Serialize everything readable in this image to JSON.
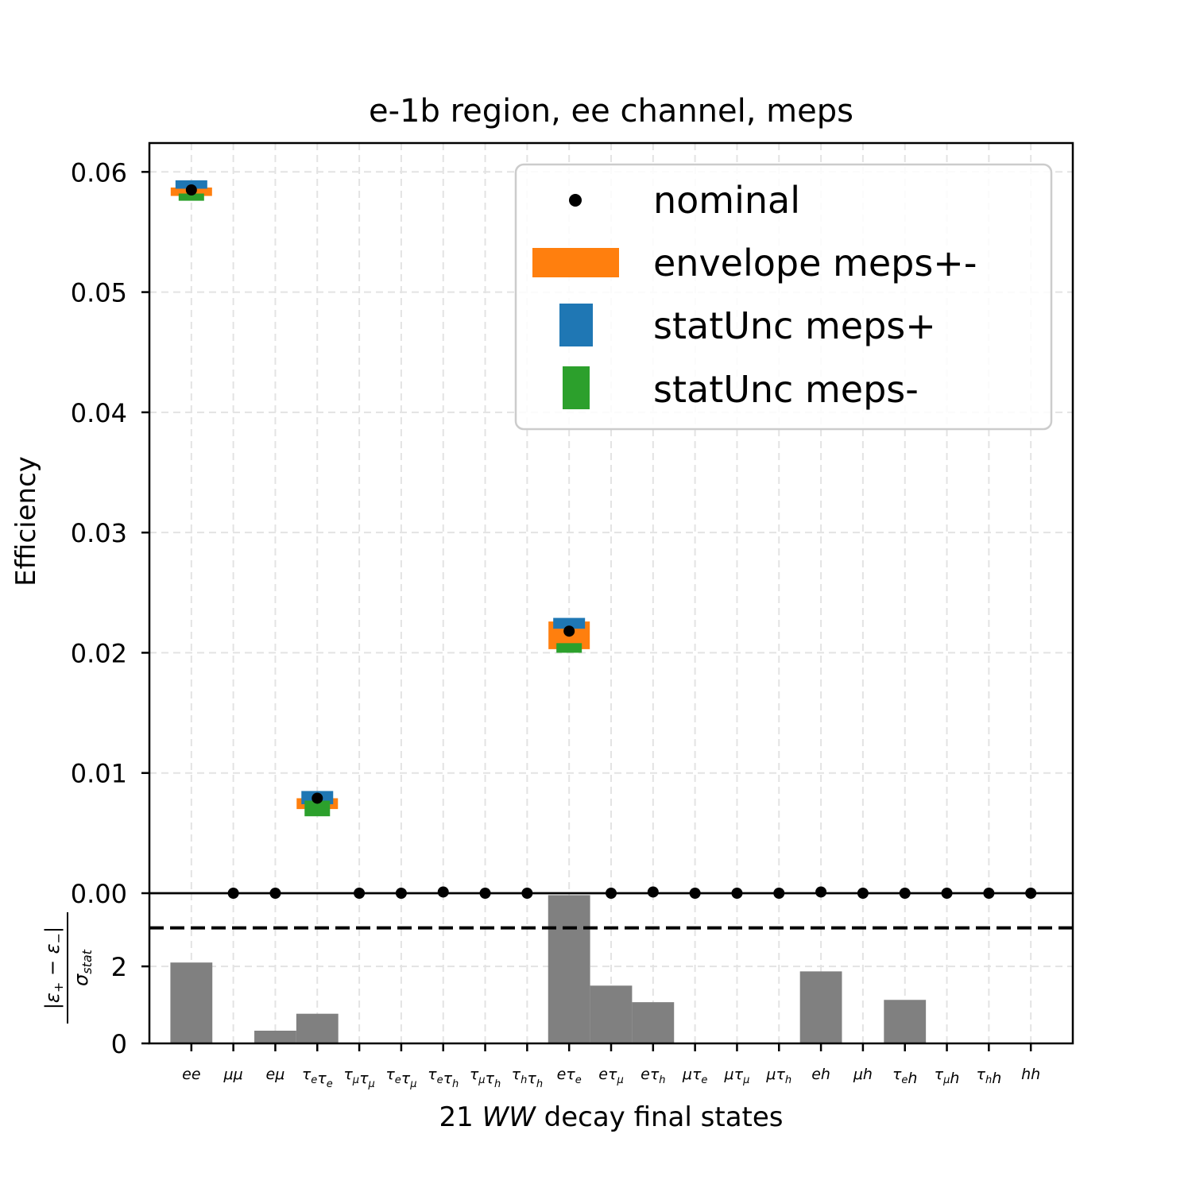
{
  "chart_data": {
    "type": "bar",
    "title": "e-1b region, ee channel, meps",
    "xlabel": "21 WW decay final states",
    "ylabel": "Efficiency",
    "ratio_ylabel": "|ε₊ − ε₋| / σ_stat",
    "ylim": [
      0,
      0.0624
    ],
    "ratio_ylim": [
      0,
      3.9
    ],
    "yticks": [
      "0.00",
      "0.01",
      "0.02",
      "0.03",
      "0.04",
      "0.05",
      "0.06"
    ],
    "ratio_yticks": [
      "0",
      "2"
    ],
    "ratio_threshold": 3,
    "grid": true,
    "legend_position": "top-right",
    "categories": [
      "ee",
      "μμ",
      "eμ",
      "τeτe",
      "τμτμ",
      "τeτμ",
      "τeτh",
      "τμτh",
      "τhτh",
      "eτe",
      "eτμ",
      "eτh",
      "μτe",
      "μτμ",
      "μτh",
      "eh",
      "μh",
      "τeh",
      "τμh",
      "τhh",
      "hh"
    ],
    "category_parts": [
      [
        [
          "e",
          ""
        ],
        [
          "e",
          ""
        ]
      ],
      [
        [
          "μ",
          ""
        ],
        [
          "μ",
          ""
        ]
      ],
      [
        [
          "e",
          ""
        ],
        [
          "μ",
          ""
        ]
      ],
      [
        [
          "τ",
          "e"
        ],
        [
          "τ",
          "e"
        ]
      ],
      [
        [
          "τ",
          "μ"
        ],
        [
          "τ",
          "μ"
        ]
      ],
      [
        [
          "τ",
          "e"
        ],
        [
          "τ",
          "μ"
        ]
      ],
      [
        [
          "τ",
          "e"
        ],
        [
          "τ",
          "h"
        ]
      ],
      [
        [
          "τ",
          "μ"
        ],
        [
          "τ",
          "h"
        ]
      ],
      [
        [
          "τ",
          "h"
        ],
        [
          "τ",
          "h"
        ]
      ],
      [
        [
          "e",
          ""
        ],
        [
          "τ",
          "e"
        ]
      ],
      [
        [
          "e",
          ""
        ],
        [
          "τ",
          "μ"
        ]
      ],
      [
        [
          "e",
          ""
        ],
        [
          "τ",
          "h"
        ]
      ],
      [
        [
          "μ",
          ""
        ],
        [
          "τ",
          "e"
        ]
      ],
      [
        [
          "μ",
          ""
        ],
        [
          "τ",
          "μ"
        ]
      ],
      [
        [
          "μ",
          ""
        ],
        [
          "τ",
          "h"
        ]
      ],
      [
        [
          "e",
          ""
        ],
        [
          "h",
          ""
        ]
      ],
      [
        [
          "μ",
          ""
        ],
        [
          "h",
          ""
        ]
      ],
      [
        [
          "τ",
          "e"
        ],
        [
          "h",
          ""
        ]
      ],
      [
        [
          "τ",
          "μ"
        ],
        [
          "h",
          ""
        ]
      ],
      [
        [
          "τ",
          "h"
        ],
        [
          "h",
          ""
        ]
      ],
      [
        [
          "h",
          ""
        ],
        [
          "h",
          ""
        ]
      ]
    ],
    "legend": [
      "nominal",
      "envelope meps+-",
      "statUnc meps+",
      "statUnc meps-"
    ],
    "colors": {
      "nominal": "#000000",
      "envelope": "#ff7f0e",
      "stat_plus": "#1f77b4",
      "stat_minus": "#2ca02c",
      "ratio_bar": "#808080",
      "grid": "#e3e3e3"
    },
    "series": [
      {
        "name": "nominal",
        "values": [
          0.0585,
          0.0,
          0.0,
          0.0079,
          0.0,
          0.0,
          0.0001,
          0.0,
          0.0,
          0.0218,
          0.0,
          0.0001,
          0.0,
          0.0,
          0.0,
          0.0001,
          0.0,
          0.0,
          0.0,
          0.0,
          0.0
        ]
      },
      {
        "name": "envelope meps+-",
        "low": [
          0.058,
          0,
          0,
          0.007,
          0,
          0,
          0,
          0,
          0,
          0.0203,
          0,
          0,
          0,
          0,
          0,
          0,
          0,
          0,
          0,
          0,
          0
        ],
        "high": [
          0.0587,
          0,
          0,
          0.0079,
          0,
          0,
          0,
          0,
          0,
          0.0226,
          0,
          0,
          0,
          0,
          0,
          0,
          0,
          0,
          0,
          0,
          0
        ]
      },
      {
        "name": "statUnc meps+",
        "low": [
          0.0586,
          0,
          0,
          0.0074,
          0,
          0,
          0,
          0,
          0,
          0.022,
          0,
          0,
          0,
          0,
          0,
          0,
          0,
          0,
          0,
          0,
          0
        ],
        "high": [
          0.0593,
          0,
          0,
          0.0085,
          0,
          0,
          0,
          0,
          0,
          0.0229,
          0,
          0,
          0,
          0,
          0,
          0,
          0,
          0,
          0,
          0,
          0
        ]
      },
      {
        "name": "statUnc meps-",
        "low": [
          0.0576,
          0,
          0,
          0.0064,
          0,
          0,
          0,
          0,
          0,
          0.02,
          0,
          0,
          0,
          0,
          0,
          0,
          0,
          0,
          0,
          0,
          0
        ],
        "high": [
          0.0582,
          0,
          0,
          0.0077,
          0,
          0,
          0,
          0,
          0,
          0.0208,
          0,
          0,
          0,
          0,
          0,
          0,
          0,
          0,
          0,
          0,
          0
        ]
      }
    ],
    "ratio_values": [
      2.1,
      0,
      0.33,
      0.77,
      0,
      0,
      0.02,
      0,
      0,
      3.85,
      1.5,
      1.07,
      0,
      0,
      0,
      1.87,
      0,
      1.13,
      0,
      0,
      0
    ]
  }
}
